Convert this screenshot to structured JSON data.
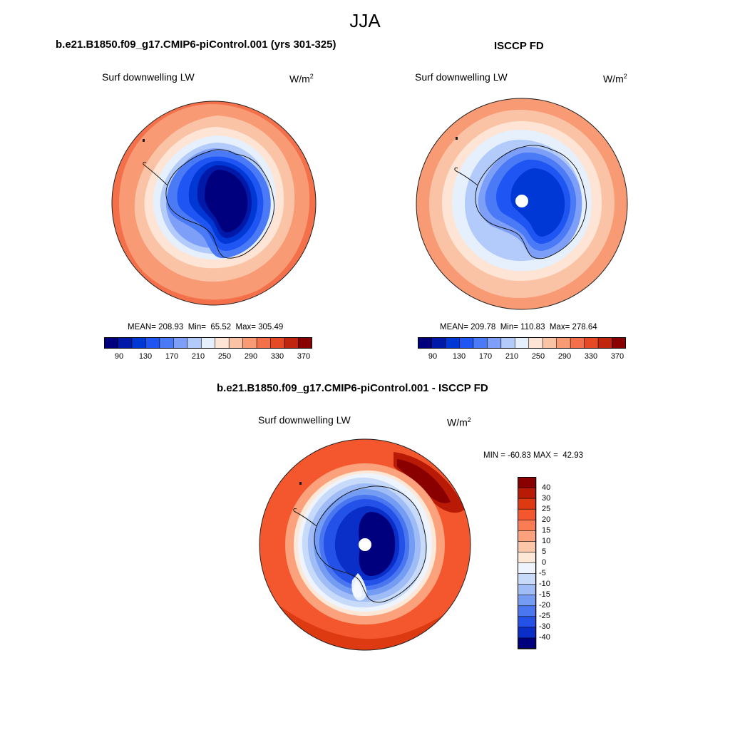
{
  "title": "JJA",
  "panels": [
    {
      "title": "b.e21.B1850.f09_g17.CMIP6-piControl.001 (yrs 301-325)",
      "variable": "Surf downwelling LW",
      "units_base": "W/m",
      "units_sup": "2",
      "stats": "MEAN= 208.93  Min=  65.52  Max= 305.49",
      "colorbar_ticks": [
        "90",
        "130",
        "170",
        "210",
        "250",
        "290",
        "330",
        "370"
      ]
    },
    {
      "title": "ISCCP FD",
      "variable": "Surf downwelling LW",
      "units_base": "W/m",
      "units_sup": "2",
      "stats": "MEAN= 209.78  Min= 110.83  Max= 278.64",
      "colorbar_ticks": [
        "90",
        "130",
        "170",
        "210",
        "250",
        "290",
        "330",
        "370"
      ]
    },
    {
      "title": "b.e21.B1850.f09_g17.CMIP6-piControl.001 - ISCCP FD",
      "variable": "Surf downwelling LW",
      "units_base": "W/m",
      "units_sup": "2",
      "stats": "MIN = -60.83 MAX =  42.93",
      "colorbar_ticks": [
        "40",
        "30",
        "25",
        "20",
        "15",
        "10",
        "5",
        "0",
        "-5",
        "-10",
        "-15",
        "-20",
        "-25",
        "-30",
        "-40"
      ]
    }
  ],
  "colors": {
    "abs_scale": [
      "#00007f",
      "#0019a8",
      "#0038d6",
      "#1f55f2",
      "#4a7af5",
      "#7d9ff7",
      "#b2cbfa",
      "#e6f0fc",
      "#fde4d5",
      "#fbc3a6",
      "#f89a74",
      "#f4704a",
      "#e64a25",
      "#c0260e",
      "#8a0000"
    ],
    "diff_scale": [
      "#8a0000",
      "#b81a06",
      "#dd3a12",
      "#f4572d",
      "#f97c52",
      "#fba17c",
      "#fcc6a8",
      "#fde8d8",
      "#eef4fd",
      "#c8daf9",
      "#9fbcf6",
      "#749cf3",
      "#4a77ef",
      "#2452e8",
      "#0a2fc8",
      "#00007f"
    ],
    "coast": "#1a1a1a"
  }
}
